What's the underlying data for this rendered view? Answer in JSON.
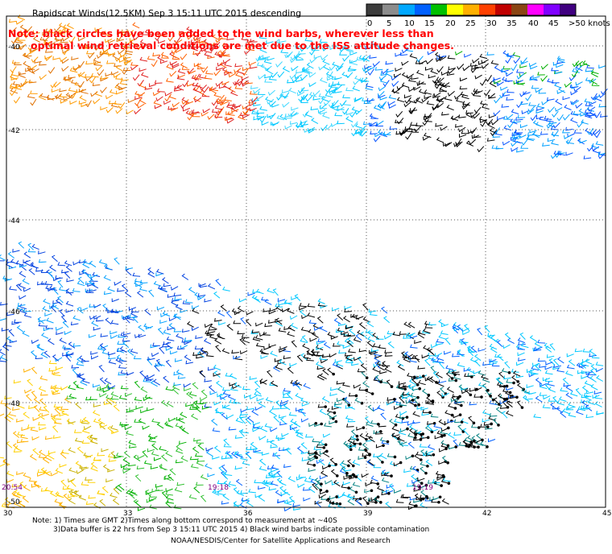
{
  "header": {
    "title": "Rapidscat Winds(12.5KM)  Sep  3 15:11 UTC 2015  descending",
    "note_line1": "Note: black circles have been added to the wind barbs, wherever less than",
    "note_line2": "optimal wind retrieval conditions are met due to the ISS attitude changes."
  },
  "legend": {
    "labels": [
      "0",
      "5",
      "10",
      "15",
      "20",
      "25",
      "30",
      "35",
      "40",
      "45",
      ">50 knots"
    ],
    "colors": [
      "#3c3c3c",
      "#8c8c8c",
      "#00a8ff",
      "#0060ff",
      "#00c000",
      "#ffff00",
      "#ffb000",
      "#ff4000",
      "#c00000",
      "#8b4513",
      "#ff00ff",
      "#8000ff",
      "#400080"
    ]
  },
  "map": {
    "lat_labels": [
      "-40",
      "-42",
      "-44",
      "-46",
      "-48",
      "-50"
    ],
    "lon_labels": [
      "30",
      "33",
      "36",
      "39",
      "42",
      "45"
    ],
    "time_labels": [
      "20:54",
      "19:18",
      "19:19"
    ]
  },
  "footer": {
    "line1": "Note: 1) Times are GMT 2)Times along bottom correspond to measurement at ~40S",
    "line2": "3)Data buffer is 22 hrs from Sep  3 15:11 UTC 2015 4) Black wind barbs indicate possible contamination",
    "line3": "NOAA/NESDIS/Center for Satellite Applications and Research"
  }
}
